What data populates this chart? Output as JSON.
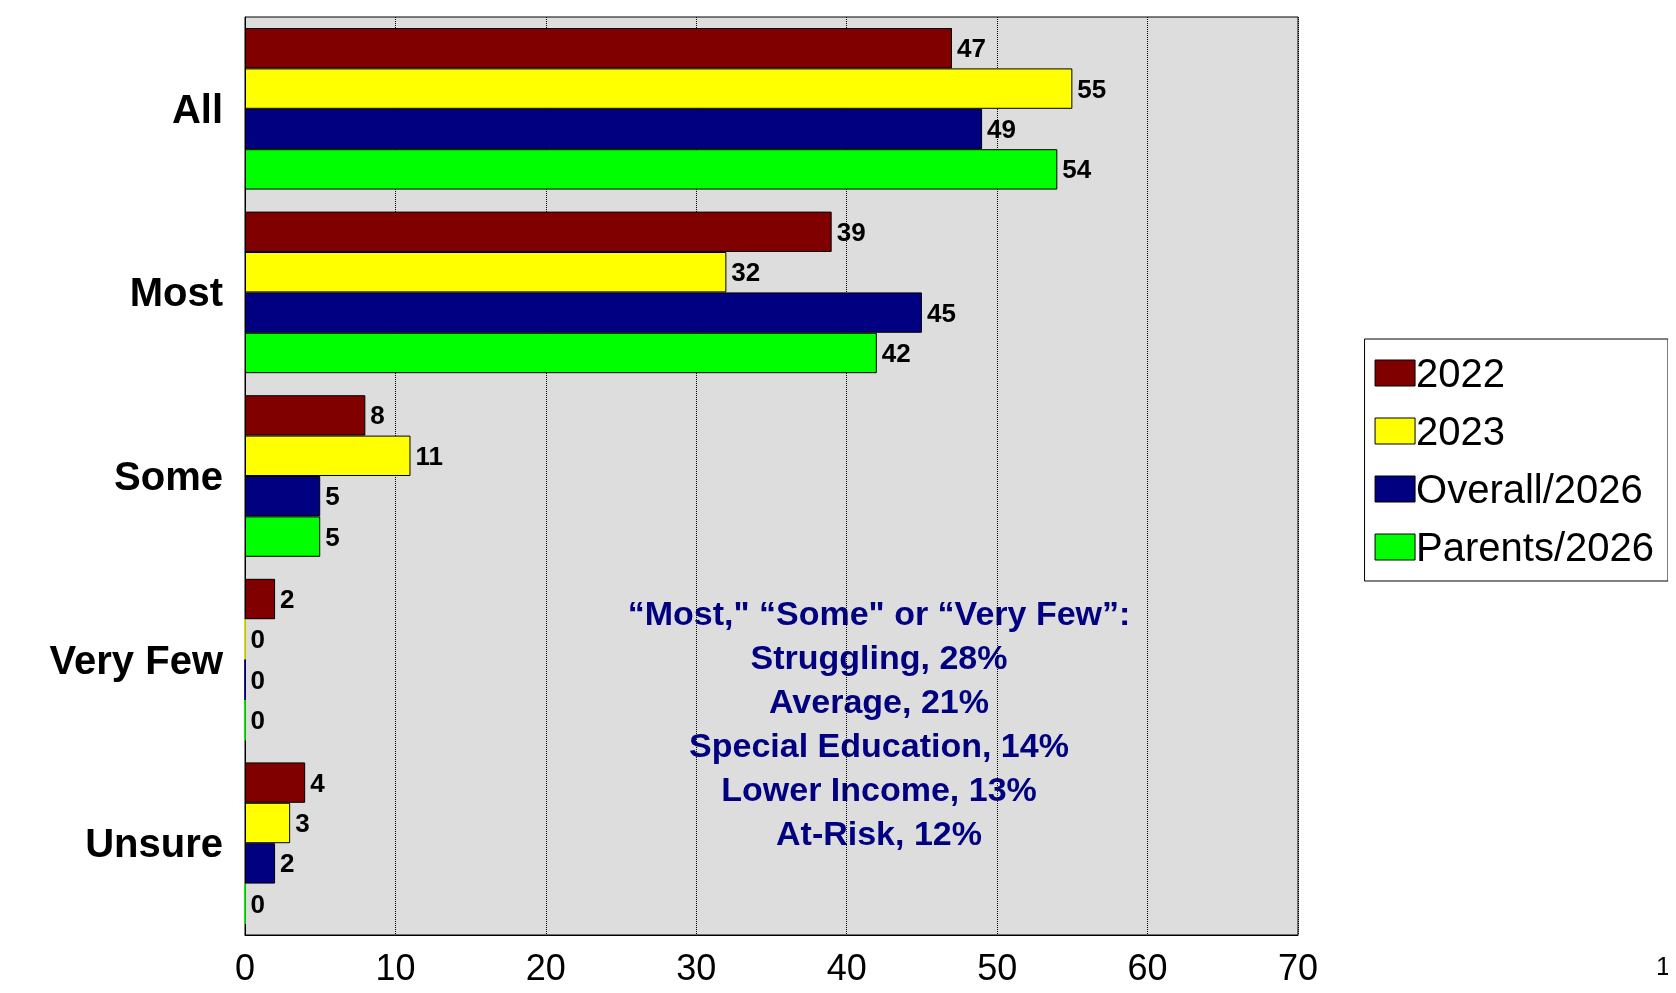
{
  "chart_data": {
    "type": "bar",
    "orientation": "horizontal",
    "categories": [
      "All",
      "Most",
      "Some",
      "Very Few",
      "Unsure"
    ],
    "series": [
      {
        "name": "2022",
        "color": "#800000",
        "values": [
          47,
          39,
          8,
          2,
          4
        ]
      },
      {
        "name": "2023",
        "color": "#ffff00",
        "values": [
          55,
          32,
          11,
          0,
          3
        ]
      },
      {
        "name": "Overall/2026",
        "color": "#000080",
        "values": [
          49,
          45,
          5,
          0,
          2
        ]
      },
      {
        "name": "Parents/2026",
        "color": "#00ff00",
        "values": [
          54,
          42,
          5,
          0,
          0
        ]
      }
    ],
    "xlim": [
      0,
      70
    ],
    "xticks": [
      0,
      10,
      20,
      30,
      40,
      50,
      60,
      70
    ],
    "grid": "x",
    "legend": "right",
    "data_labels": true,
    "annotations": [
      "“Most,\" “Some\" or “Very Few”:",
      "Struggling, 28%",
      "Average, 21%",
      "Special Education, 14%",
      "Lower Income, 13%",
      "At-Risk, 12%",
      "1"
    ]
  }
}
